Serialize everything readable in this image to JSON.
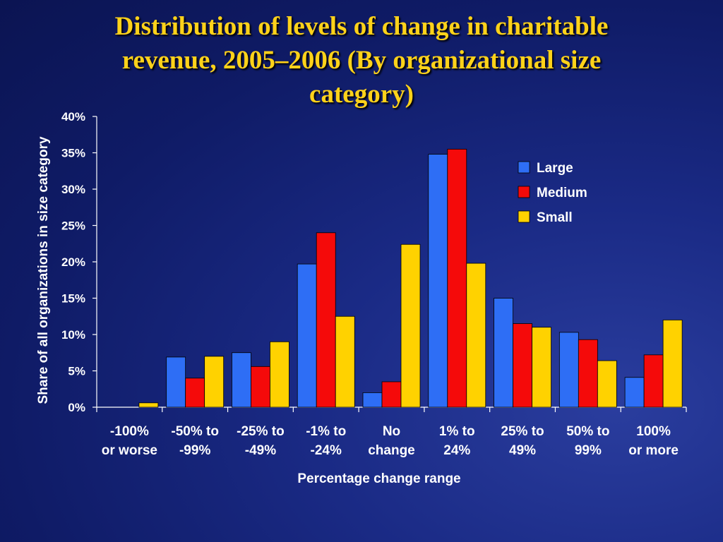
{
  "slide": {
    "title_lines": [
      "Distribution of levels of change in charitable",
      "revenue, 2005–2006 (By organizational size",
      "category)"
    ]
  },
  "chart_data": {
    "type": "bar",
    "title": "Distribution of levels of change in charitable revenue, 2005–2006 (By organizational size category)",
    "xlabel": "Percentage change range",
    "ylabel": "Share of all organizations in size category",
    "ylim": [
      0,
      40
    ],
    "y_ticks": [
      "0%",
      "5%",
      "10%",
      "15%",
      "20%",
      "25%",
      "30%",
      "35%",
      "40%"
    ],
    "y_tick_values": [
      0,
      5,
      10,
      15,
      20,
      25,
      30,
      35,
      40
    ],
    "grid": false,
    "legend_position": "top-right",
    "categories": [
      [
        "-100%",
        "or worse"
      ],
      [
        "-50% to",
        "-99%"
      ],
      [
        "-25% to",
        "-49%"
      ],
      [
        "-1% to",
        "-24%"
      ],
      [
        "No",
        "change"
      ],
      [
        "1% to",
        "24%"
      ],
      [
        "25% to",
        "49%"
      ],
      [
        "50% to",
        "99%"
      ],
      [
        "100%",
        "or more"
      ]
    ],
    "series": [
      {
        "name": "Large",
        "color": "#2e6ef5",
        "values": [
          0,
          6.9,
          7.5,
          19.7,
          2.0,
          34.8,
          15.0,
          10.3,
          4.1
        ]
      },
      {
        "name": "Medium",
        "color": "#f50a0a",
        "values": [
          0,
          4.0,
          5.6,
          24.0,
          3.5,
          35.5,
          11.5,
          9.3,
          7.2
        ]
      },
      {
        "name": "Small",
        "color": "#ffd200",
        "values": [
          0.6,
          7.0,
          9.0,
          12.5,
          22.4,
          19.8,
          11.0,
          6.4,
          12.0
        ]
      }
    ]
  }
}
